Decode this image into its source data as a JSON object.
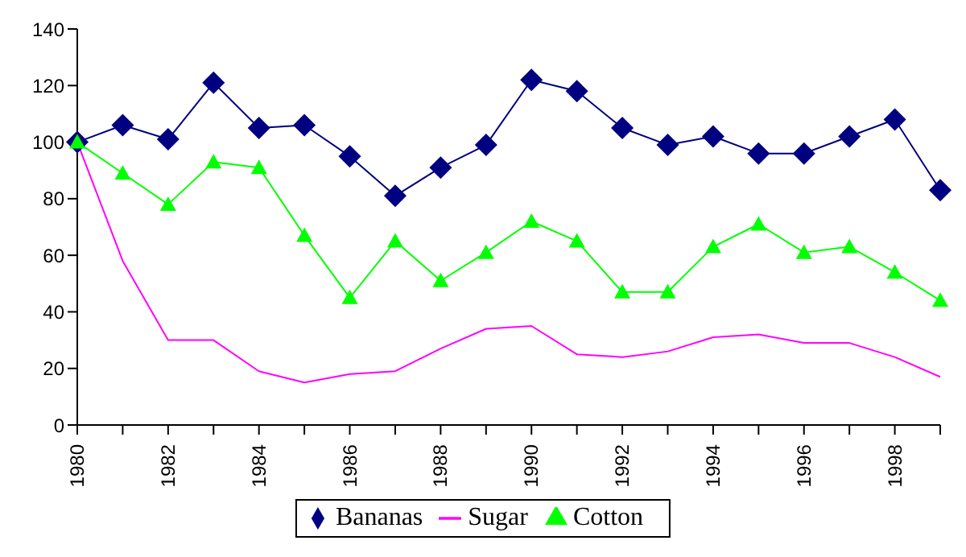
{
  "chart_data": {
    "type": "line",
    "categories": [
      "1980",
      null,
      "1982",
      null,
      "1984",
      null,
      "1986",
      null,
      "1988",
      null,
      "1990",
      null,
      "1992",
      null,
      "1994",
      null,
      "1996",
      null,
      "1998",
      null
    ],
    "series": [
      {
        "name": "Bananas",
        "color": "#000080",
        "marker": "diamond",
        "values": [
          100,
          106,
          101,
          121,
          105,
          106,
          95,
          81,
          91,
          99,
          122,
          118,
          105,
          99,
          102,
          96,
          96,
          102,
          108,
          83
        ]
      },
      {
        "name": "Sugar",
        "color": "#ff00ff",
        "marker": "none",
        "values": [
          100,
          58,
          30,
          30,
          19,
          15,
          18,
          19,
          27,
          34,
          35,
          25,
          24,
          26,
          31,
          32,
          29,
          29,
          24,
          17
        ]
      },
      {
        "name": "Cotton",
        "color": "#00ff00",
        "marker": "triangle",
        "values": [
          100,
          89,
          78,
          93,
          91,
          67,
          45,
          65,
          51,
          61,
          72,
          65,
          47,
          47,
          63,
          71,
          61,
          63,
          54,
          44
        ]
      }
    ],
    "ylim": [
      0,
      140
    ],
    "yticks": [
      0,
      20,
      40,
      60,
      80,
      100,
      120,
      140
    ],
    "legend": "bottom"
  }
}
